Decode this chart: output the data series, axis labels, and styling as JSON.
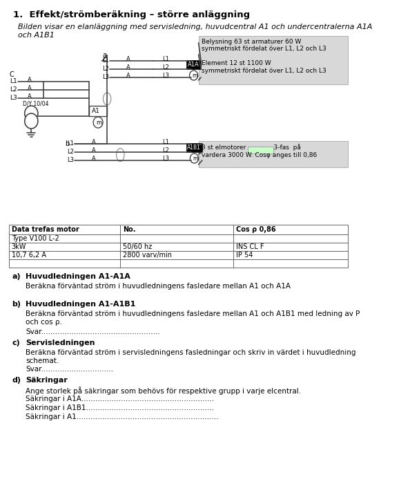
{
  "title": "1.  Effekt/strömberäkning – större anläggning",
  "subtitle": "Bilden visar en elanläggning med servisledning, huvudcentral A1 och undercentralerna A1A\noch A1B1",
  "info_box1": "Belysning 63 st armaturer 60 W\nsymmetriskt fördelat över L1, L2 och L3\n\nElement 12 st 1100 W\nsymmetriskt fördelat över L1, L2 och L3",
  "info_box2_line1": "3 st elmotorer              3-fas  på",
  "info_box2_line2": "vardera 3000 W. Cosφ anges till 0,86",
  "table_rows": [
    [
      "Data trefas motor",
      "No.",
      "Cos ρ 0,86"
    ],
    [
      "Type V100 L-2",
      "",
      ""
    ],
    [
      "3kW",
      "50/60 hz",
      "INS CL F"
    ],
    [
      "10,7 6,2 A",
      "2800 varv/min",
      "IP 54"
    ],
    [
      "",
      "",
      ""
    ]
  ],
  "section_a_label": "a)",
  "section_a_title": "Huvudledningen A1-A1A",
  "section_a_text": "Beräkna förväntad ström i huvudledningens fasledare mellan A1 och A1A",
  "section_b_label": "b)",
  "section_b_title": "Huvudledningen A1-A1B1",
  "section_b_text": "Beräkna förväntad ström i huvudledningens fasledare mellan A1 och A1B1 med ledning av P\noch cos ρ.",
  "section_b_svar": "Svar...................................................",
  "section_c_label": "c)",
  "section_c_title": "Servisledningen",
  "section_c_text": "Beräkna förväntad ström i servisledningens fasledningar och skriv in värdet i huvudledning\nschemat.",
  "section_c_svar": "Svar...............................",
  "section_d_label": "d)",
  "section_d_title": "Säkringar",
  "section_d_text": "Ange storlek på säkringar som behövs för respektive grupp i varje elcentral.",
  "section_d_s1": "Säkringar i A1A.........................................................",
  "section_d_s2": "Säkringar i A1B1.......................................................",
  "section_d_s3": "Säkringar i A1............................................................."
}
